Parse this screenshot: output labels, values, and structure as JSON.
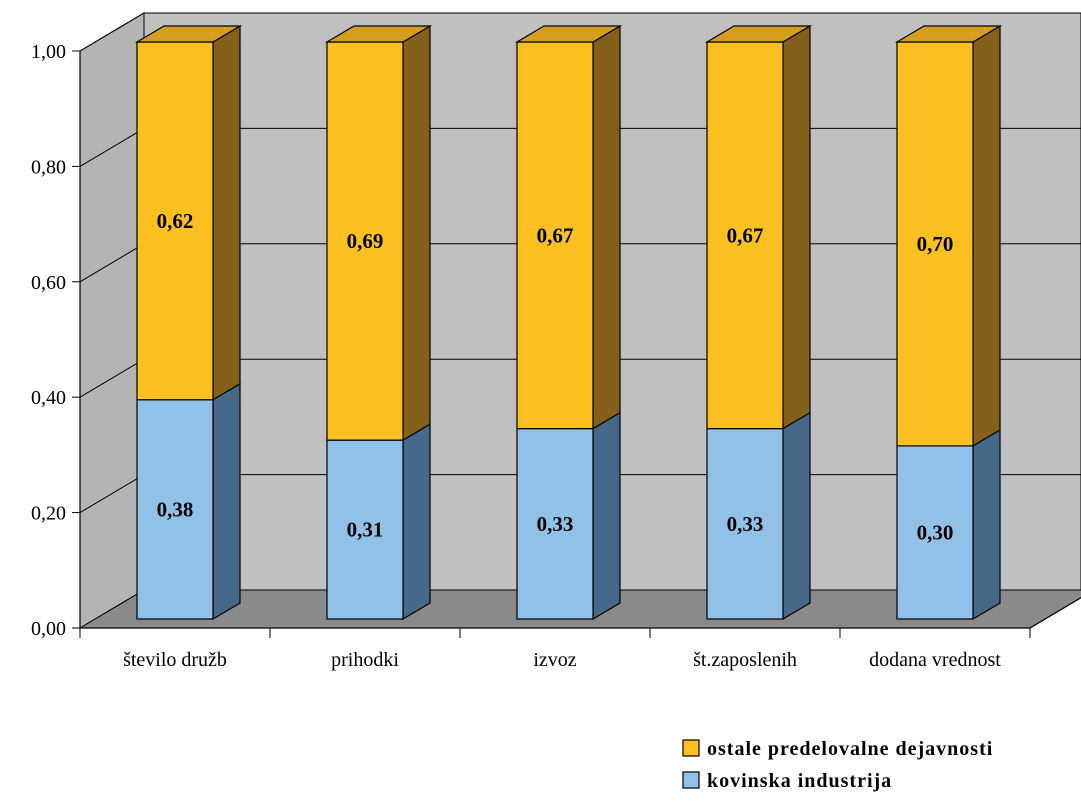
{
  "chart_data": {
    "type": "bar",
    "stacked": true,
    "percent_stacked": true,
    "three_d": true,
    "categories": [
      "število družb",
      "prihodki",
      "izvoz",
      "št.zaposlenih",
      "dodana vrednost"
    ],
    "series": [
      {
        "name": "kovinska industrija",
        "values": [
          0.38,
          0.31,
          0.33,
          0.33,
          0.3
        ],
        "labels": [
          "0,38",
          "0,31",
          "0,33",
          "0,33",
          "0,30"
        ],
        "color": "#92C1E8",
        "side_color": "#46698A"
      },
      {
        "name": "ostale predelovalne dejavnosti",
        "values": [
          0.62,
          0.69,
          0.67,
          0.67,
          0.7
        ],
        "labels": [
          "0,62",
          "0,69",
          "0,67",
          "0,67",
          "0,70"
        ],
        "color": "#FCC020",
        "side_color": "#84601A"
      }
    ],
    "yticks": [
      "0,00",
      "0,20",
      "0,40",
      "0,60",
      "0,80",
      "1,00"
    ],
    "ylim": [
      0,
      1
    ],
    "grid": true,
    "legend_position": "bottom-right",
    "colors": {
      "wall": "#C0C0C0",
      "floor": "#8A8A8A"
    }
  }
}
